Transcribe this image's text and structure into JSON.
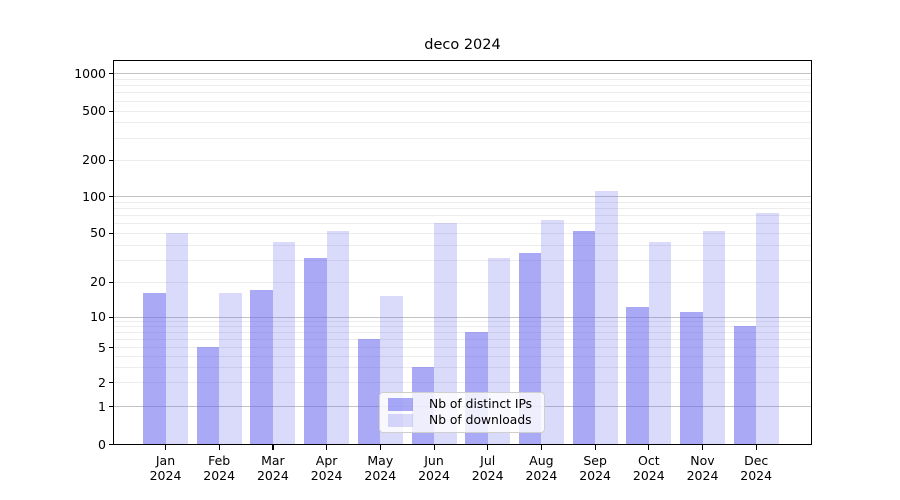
{
  "title": "deco 2024",
  "colors": {
    "bar_base": "#6363ee",
    "distinct_ips_fill": "rgba(99,99,238,0.55)",
    "downloads_fill": "rgba(99,99,238,0.24)",
    "grid_minor": "#ececec",
    "grid_major": "#c3c3c3",
    "axis": "#000000"
  },
  "legend": {
    "items": [
      {
        "label": "Nb of distinct IPs"
      },
      {
        "label": "Nb of downloads"
      }
    ]
  },
  "chart_data": {
    "type": "bar",
    "title": "deco 2024",
    "categories": [
      "Jan 2024",
      "Feb 2024",
      "Mar 2024",
      "Apr 2024",
      "May 2024",
      "Jun 2024",
      "Jul 2024",
      "Aug 2024",
      "Sep 2024",
      "Oct 2024",
      "Nov 2024",
      "Dec 2024"
    ],
    "series": [
      {
        "name": "Nb of distinct IPs",
        "color": "rgba(99,99,238,0.55)",
        "values": [
          16,
          5,
          17,
          31,
          6,
          3,
          7,
          34,
          52,
          12,
          11,
          8
        ]
      },
      {
        "name": "Nb of downloads",
        "color": "rgba(99,99,238,0.24)",
        "values": [
          50,
          16,
          42,
          52,
          15,
          60,
          31,
          63,
          110,
          42,
          52,
          73
        ]
      }
    ],
    "xlabel": "",
    "ylabel": "",
    "yscale": "symlog",
    "yticks": [
      0,
      1,
      2,
      5,
      10,
      20,
      50,
      100,
      200,
      500,
      1000
    ],
    "ytick_labels": [
      "0",
      "1",
      "2",
      "5",
      "10",
      "20",
      "50",
      "100",
      "200",
      "500",
      "1000"
    ],
    "ylim": [
      0,
      1280
    ],
    "grid": "both",
    "legend_position": "lower center"
  }
}
